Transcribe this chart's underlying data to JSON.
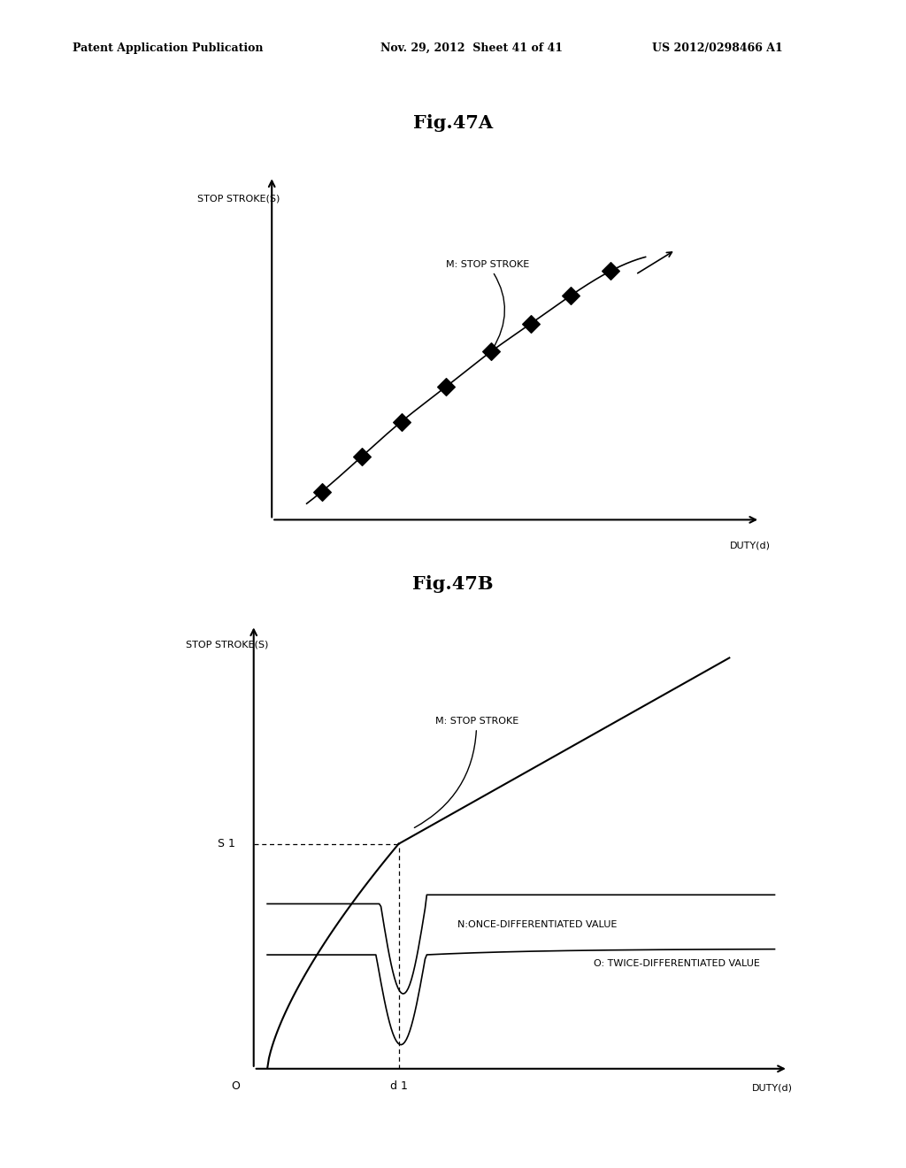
{
  "background_color": "#ffffff",
  "header_left": "Patent Application Publication",
  "header_mid": "Nov. 29, 2012  Sheet 41 of 41",
  "header_right": "US 2012/0298466 A1",
  "fig47A_title": "Fig.47A",
  "fig47B_title": "Fig.47B",
  "figA_ylabel": "STOP STROKE(S)",
  "figA_xlabel": "DUTY(d)",
  "figA_label": "M: STOP STROKE",
  "figB_ylabel": "STOP STROKE(S)",
  "figB_xlabel": "DUTY(d)",
  "figB_label_M": "M: STOP STROKE",
  "figB_label_N": "N:ONCE-DIFFERENTIATED VALUE",
  "figB_label_O": "O: TWICE-DIFFERENTIATED VALUE",
  "figB_S1_label": "S 1",
  "figB_d1_label": "d 1",
  "figB_O_label": "O"
}
